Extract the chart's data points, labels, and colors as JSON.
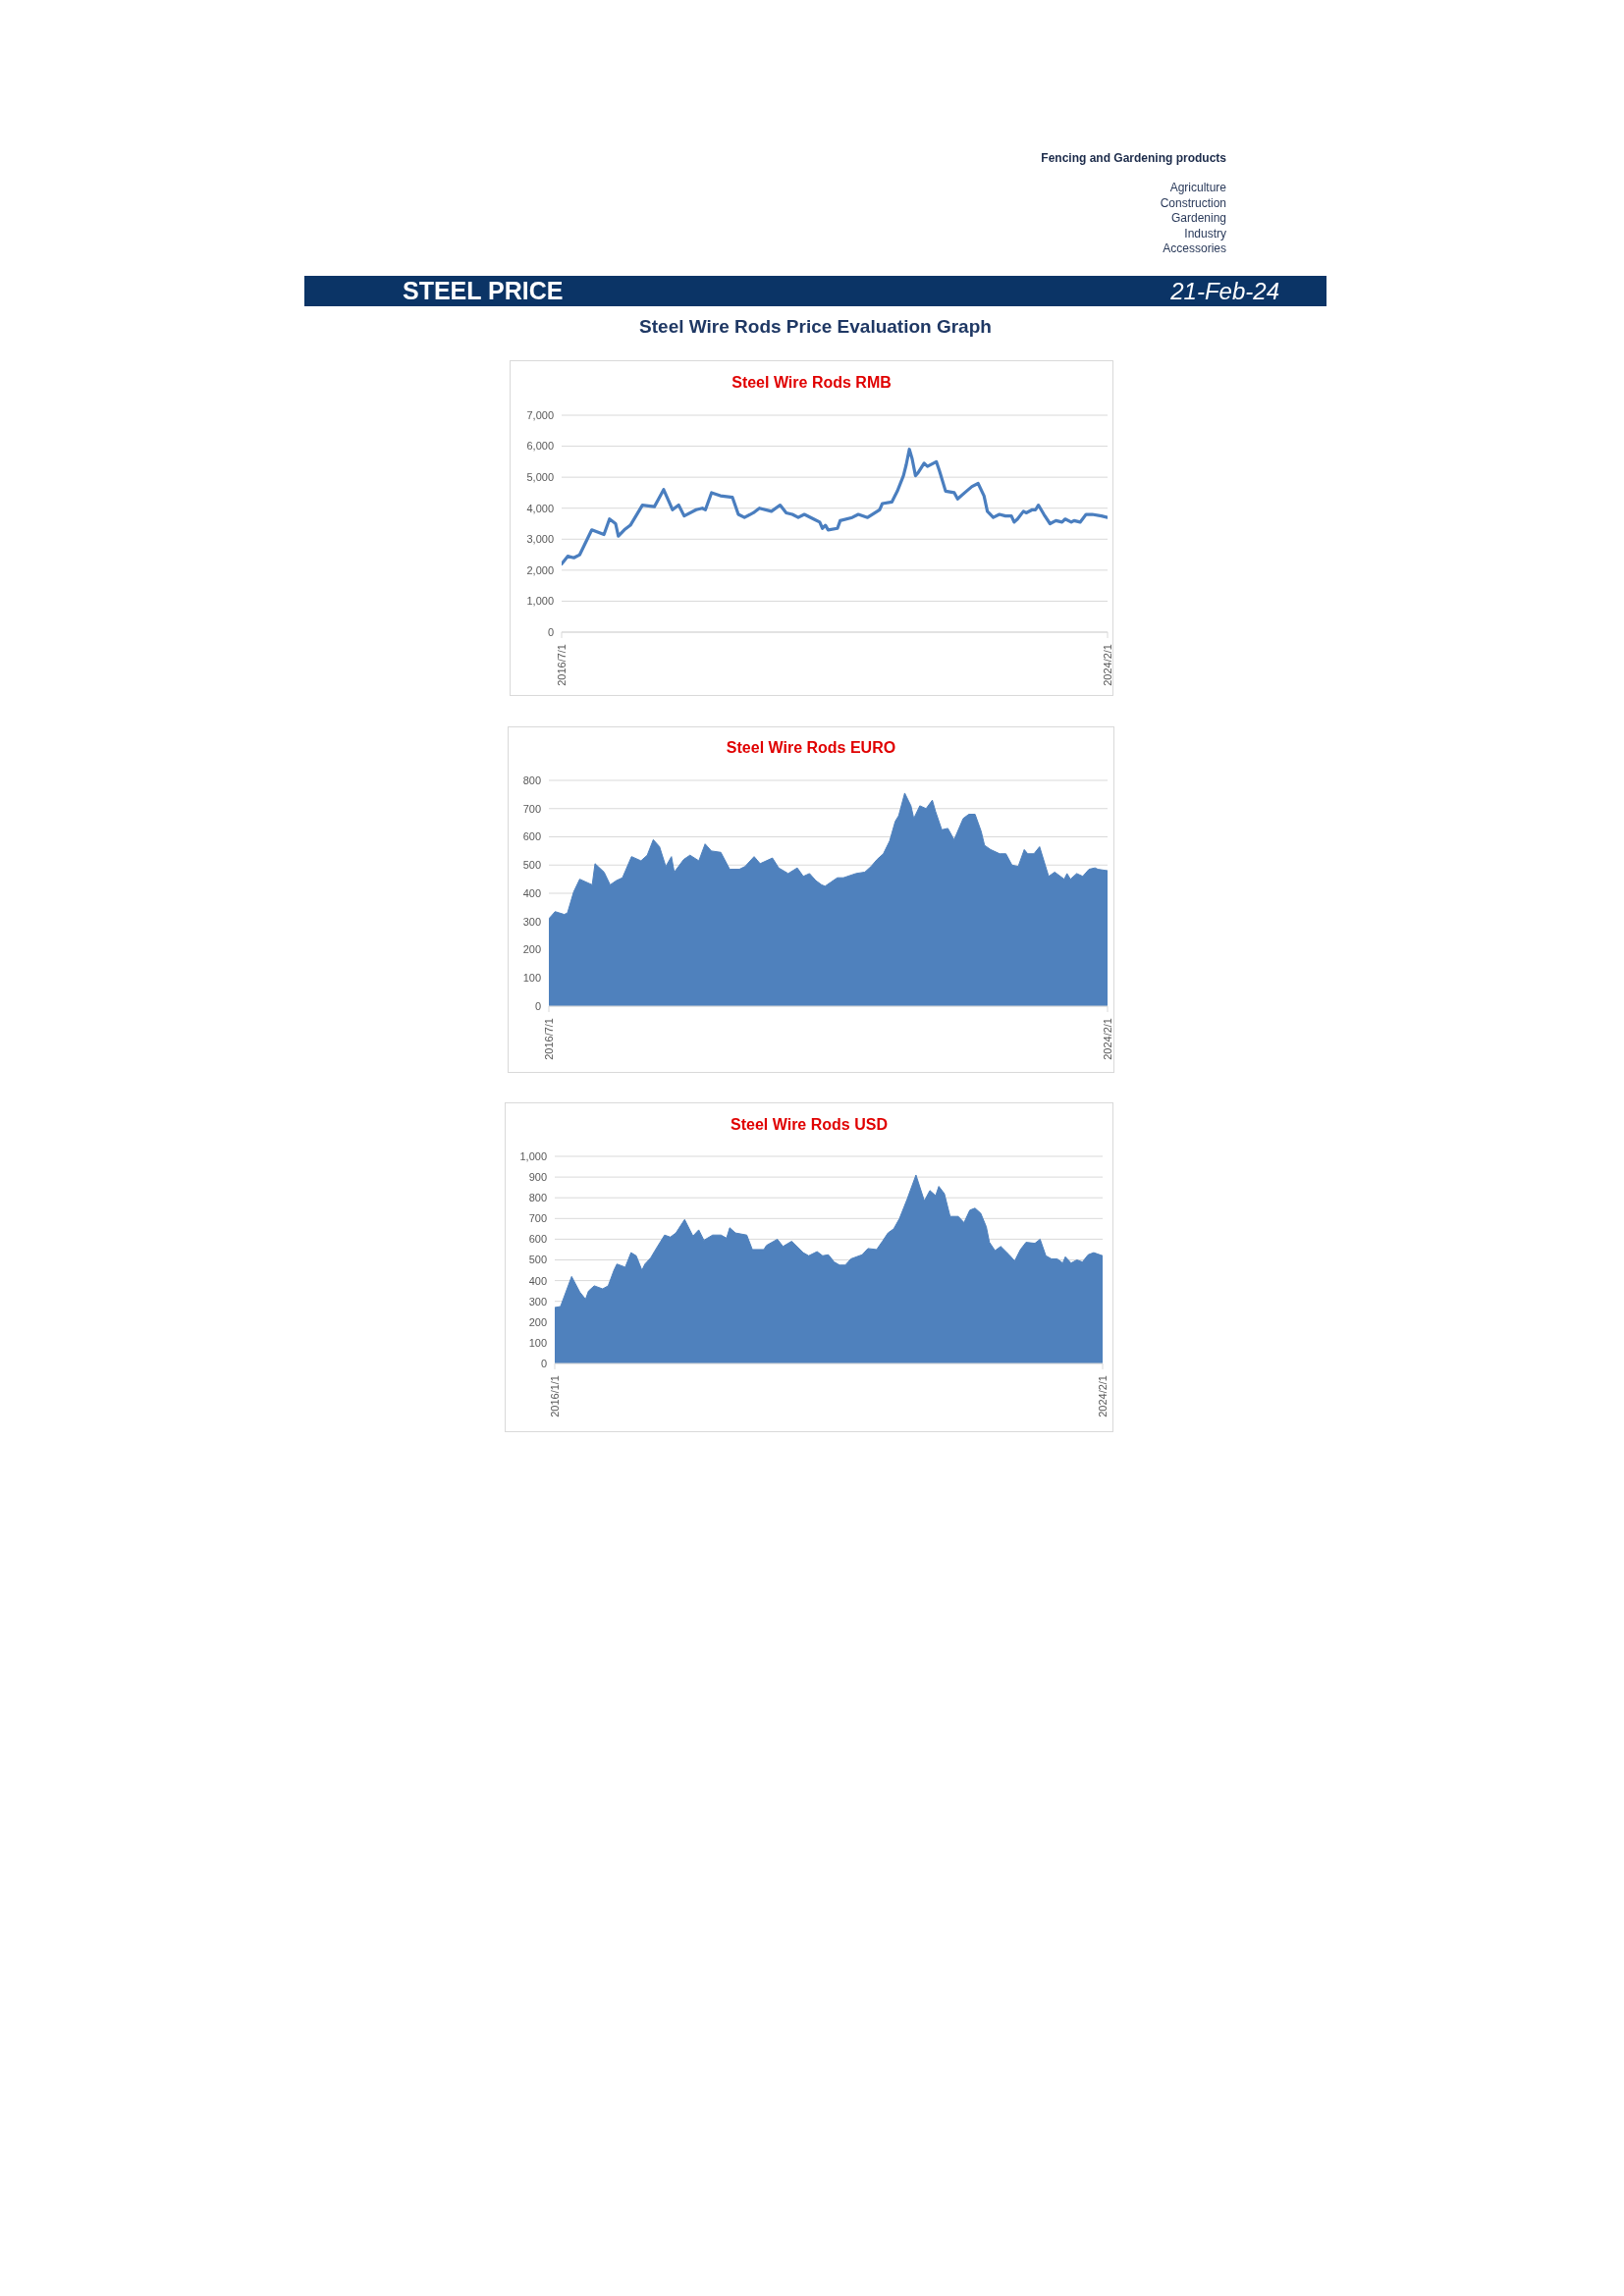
{
  "chart_data": [
    {
      "type": "other",
      "title": "STEEL PRICE",
      "subtitle": "Steel Wire Rods Price Evaluation Graph",
      "annotations": [
        "Fencing and Gardening products",
        "Agriculture",
        "Construction",
        "Gardening",
        "Industry",
        "Accessories",
        "21-Feb-24"
      ]
    },
    {
      "type": "line",
      "title": "Steel Wire Rods RMB",
      "color": "#4a7ebf",
      "grid": "y",
      "ylim": [
        0,
        7000
      ],
      "yticks": [
        0,
        {
          "value": 1000,
          "label": "1,000"
        },
        {
          "value": 2000,
          "label": "2,000"
        },
        {
          "value": 3000,
          "label": "3,000"
        },
        {
          "value": 4000,
          "label": "4,000"
        },
        {
          "value": 5000,
          "label": "5,000"
        },
        {
          "value": 6000,
          "label": "6,000"
        },
        {
          "value": 7000,
          "label": "7,000"
        }
      ],
      "xlim": [
        "2016-07-01",
        "2024-02-01"
      ],
      "xticks": [
        {
          "value": "2016-07-01",
          "label": "2016/7/1"
        },
        {
          "value": "2024-02-01",
          "label": "2024/2/1"
        }
      ],
      "x": [
        "2016-07-01",
        "2016-08-01",
        "2016-09-01",
        "2016-10-01",
        "2016-12-01",
        "2017-02-01",
        "2017-03-01",
        "2017-04-01",
        "2017-04-15",
        "2017-05-15",
        "2017-06-15",
        "2017-08-15",
        "2017-10-15",
        "2017-12-01",
        "2018-01-15",
        "2018-02-15",
        "2018-03-15",
        "2018-05-15",
        "2018-06-15",
        "2018-07-01",
        "2018-08-01",
        "2018-09-15",
        "2018-11-15",
        "2018-12-15",
        "2019-01-15",
        "2019-03-01",
        "2019-04-01",
        "2019-06-01",
        "2019-07-15",
        "2019-08-15",
        "2019-09-15",
        "2019-10-15",
        "2019-11-15",
        "2020-01-01",
        "2020-02-01",
        "2020-02-15",
        "2020-03-01",
        "2020-03-15",
        "2020-05-01",
        "2020-05-15",
        "2020-07-15",
        "2020-08-15",
        "2020-10-01",
        "2020-12-01",
        "2020-12-15",
        "2021-02-01",
        "2021-03-01",
        "2021-04-01",
        "2021-04-15",
        "2021-05-01",
        "2021-05-15",
        "2021-06-01",
        "2021-06-15",
        "2021-07-15",
        "2021-08-01",
        "2021-09-15",
        "2021-10-01",
        "2021-11-01",
        "2021-12-15",
        "2022-01-01",
        "2022-02-15",
        "2022-03-15",
        "2022-04-15",
        "2022-05-15",
        "2022-06-01",
        "2022-07-01",
        "2022-08-01",
        "2022-09-01",
        "2022-10-01",
        "2022-10-15",
        "2022-11-01",
        "2022-12-01",
        "2022-12-15",
        "2023-01-15",
        "2023-02-01",
        "2023-02-15",
        "2023-03-15",
        "2023-04-15",
        "2023-05-15",
        "2023-06-15",
        "2023-07-01",
        "2023-08-01",
        "2023-08-15",
        "2023-09-15",
        "2023-10-15",
        "2023-11-15",
        "2024-01-01",
        "2024-02-01"
      ],
      "values": [
        2200,
        2450,
        2400,
        2500,
        3300,
        3150,
        3650,
        3500,
        3100,
        3300,
        3450,
        4100,
        4050,
        4600,
        3950,
        4100,
        3750,
        3950,
        4000,
        3950,
        4500,
        4400,
        4350,
        3800,
        3700,
        3850,
        4000,
        3900,
        4100,
        3850,
        3800,
        3700,
        3800,
        3650,
        3550,
        3350,
        3450,
        3300,
        3350,
        3600,
        3700,
        3800,
        3700,
        3950,
        4150,
        4200,
        4550,
        5050,
        5400,
        5900,
        5600,
        5050,
        5150,
        5450,
        5350,
        5500,
        5200,
        4550,
        4500,
        4300,
        4550,
        4700,
        4800,
        4400,
        3900,
        3700,
        3800,
        3750,
        3750,
        3550,
        3650,
        3900,
        3850,
        3950,
        3950,
        4100,
        3800,
        3500,
        3600,
        3550,
        3650,
        3550,
        3600,
        3550,
        3800,
        3800,
        3750,
        3700
      ]
    },
    {
      "type": "area",
      "title": "Steel Wire Rods EURO",
      "color": "#4f81bd",
      "grid": "y",
      "ylim": [
        0,
        800
      ],
      "yticks": [
        0,
        100,
        200,
        300,
        400,
        500,
        600,
        700,
        800
      ],
      "xlim": [
        "2016-07-01",
        "2024-02-01"
      ],
      "xticks": [
        {
          "value": "2016-07-01",
          "label": "2016/7/1"
        },
        {
          "value": "2024-02-01",
          "label": "2024/2/1"
        }
      ],
      "x": [
        "2016-07-01",
        "2016-08-01",
        "2016-09-15",
        "2016-10-01",
        "2016-11-01",
        "2016-12-01",
        "2017-02-01",
        "2017-02-15",
        "2017-04-01",
        "2017-05-01",
        "2017-06-01",
        "2017-07-01",
        "2017-08-15",
        "2017-10-01",
        "2017-11-01",
        "2017-12-01",
        "2018-01-01",
        "2018-02-01",
        "2018-03-01",
        "2018-03-15",
        "2018-05-01",
        "2018-06-01",
        "2018-07-15",
        "2018-08-15",
        "2018-09-15",
        "2018-11-01",
        "2018-12-15",
        "2019-02-01",
        "2019-03-01",
        "2019-04-15",
        "2019-05-15",
        "2019-07-15",
        "2019-08-15",
        "2019-10-01",
        "2019-11-15",
        "2019-12-15",
        "2020-01-15",
        "2020-02-15",
        "2020-03-15",
        "2020-04-01",
        "2020-05-01",
        "2020-06-01",
        "2020-07-01",
        "2020-09-01",
        "2020-10-15",
        "2020-11-15",
        "2020-12-15",
        "2021-01-15",
        "2021-02-15",
        "2021-03-15",
        "2021-04-01",
        "2021-05-01",
        "2021-06-01",
        "2021-06-15",
        "2021-07-15",
        "2021-08-15",
        "2021-09-15",
        "2021-10-01",
        "2021-11-01",
        "2021-12-01",
        "2022-01-01",
        "2022-02-15",
        "2022-03-15",
        "2022-04-15",
        "2022-05-15",
        "2022-06-01",
        "2022-07-01",
        "2022-08-15",
        "2022-09-15",
        "2022-10-15",
        "2022-11-15",
        "2022-12-15",
        "2023-01-01",
        "2023-02-01",
        "2023-03-01",
        "2023-04-15",
        "2023-05-15",
        "2023-07-01",
        "2023-07-15",
        "2023-08-01",
        "2023-09-01",
        "2023-10-01",
        "2023-11-01",
        "2023-12-01",
        "2023-12-15",
        "2024-02-01"
      ],
      "values": [
        310,
        335,
        325,
        330,
        405,
        450,
        430,
        505,
        475,
        430,
        445,
        455,
        530,
        515,
        535,
        590,
        565,
        495,
        530,
        475,
        520,
        535,
        515,
        575,
        550,
        545,
        485,
        485,
        495,
        530,
        505,
        525,
        490,
        470,
        490,
        460,
        470,
        445,
        430,
        425,
        440,
        455,
        455,
        470,
        475,
        495,
        520,
        540,
        585,
        655,
        675,
        755,
        710,
        665,
        710,
        700,
        730,
        690,
        625,
        630,
        590,
        665,
        680,
        680,
        620,
        570,
        555,
        540,
        540,
        500,
        495,
        555,
        540,
        540,
        565,
        460,
        475,
        450,
        470,
        450,
        470,
        460,
        485,
        490,
        485,
        480
      ]
    },
    {
      "type": "area",
      "title": "Steel Wire Rods USD",
      "color": "#4f81bd",
      "grid": "y",
      "ylim": [
        0,
        1000
      ],
      "yticks": [
        0,
        100,
        200,
        300,
        400,
        500,
        600,
        700,
        800,
        900,
        {
          "value": 1000,
          "label": "1,000"
        }
      ],
      "xlim": [
        "2016-01-01",
        "2024-02-01"
      ],
      "xticks": [
        {
          "value": "2016-01-01",
          "label": "2016/1/1"
        },
        {
          "value": "2024-02-01",
          "label": "2024/2/1"
        }
      ],
      "x": [
        "2016-01-01",
        "2016-02-01",
        "2016-04-01",
        "2016-05-15",
        "2016-06-15",
        "2016-07-01",
        "2016-08-01",
        "2016-09-15",
        "2016-10-15",
        "2016-11-15",
        "2016-12-01",
        "2017-01-15",
        "2017-02-15",
        "2017-03-15",
        "2017-04-15",
        "2017-05-01",
        "2017-06-01",
        "2017-07-01",
        "2017-08-15",
        "2017-09-15",
        "2017-10-15",
        "2017-12-01",
        "2018-01-15",
        "2018-02-15",
        "2018-03-15",
        "2018-05-01",
        "2018-06-15",
        "2018-07-15",
        "2018-08-01",
        "2018-09-01",
        "2018-11-01",
        "2018-12-01",
        "2019-02-01",
        "2019-02-15",
        "2019-04-15",
        "2019-05-15",
        "2019-07-01",
        "2019-09-01",
        "2019-10-01",
        "2019-11-15",
        "2019-12-15",
        "2020-01-15",
        "2020-02-15",
        "2020-03-15",
        "2020-04-15",
        "2020-05-15",
        "2020-07-15",
        "2020-08-15",
        "2020-10-01",
        "2020-11-01",
        "2020-12-01",
        "2021-01-01",
        "2021-02-01",
        "2021-03-15",
        "2021-05-01",
        "2021-06-15",
        "2021-07-15",
        "2021-08-15",
        "2021-09-01",
        "2021-10-01",
        "2021-11-01",
        "2021-12-15",
        "2022-01-15",
        "2022-02-15",
        "2022-03-15",
        "2022-04-15",
        "2022-05-15",
        "2022-06-01",
        "2022-07-01",
        "2022-08-01",
        "2022-09-15",
        "2022-10-15",
        "2022-11-15",
        "2022-12-15",
        "2023-02-01",
        "2023-03-01",
        "2023-04-01",
        "2023-05-01",
        "2023-06-01",
        "2023-07-01",
        "2023-07-15",
        "2023-08-15",
        "2023-09-15",
        "2023-10-15",
        "2023-11-15",
        "2023-12-15",
        "2024-02-01"
      ],
      "values": [
        270,
        275,
        420,
        345,
        310,
        350,
        375,
        360,
        375,
        450,
        480,
        465,
        535,
        520,
        450,
        480,
        510,
        555,
        620,
        610,
        630,
        695,
        615,
        645,
        595,
        620,
        620,
        605,
        655,
        630,
        620,
        550,
        550,
        570,
        600,
        565,
        590,
        535,
        520,
        540,
        520,
        525,
        490,
        475,
        475,
        505,
        525,
        555,
        550,
        590,
        630,
        650,
        700,
        795,
        910,
        785,
        835,
        810,
        855,
        820,
        710,
        710,
        680,
        740,
        750,
        725,
        660,
        585,
        545,
        565,
        525,
        495,
        550,
        585,
        580,
        600,
        520,
        505,
        505,
        485,
        515,
        485,
        500,
        490,
        525,
        535,
        520
      ]
    }
  ]
}
